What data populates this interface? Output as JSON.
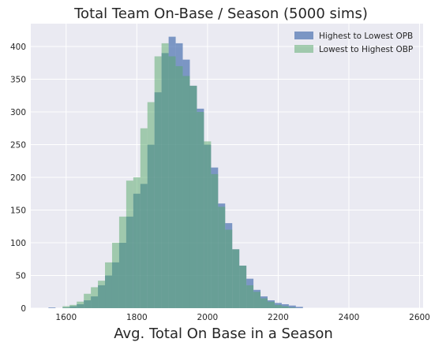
{
  "chart_data": {
    "type": "histogram",
    "title": "Total Team On-Base / Season (5000 sims)",
    "xlabel": "Avg. Total On Base in a Season",
    "ylabel": "",
    "xlim": [
      1500,
      2610
    ],
    "ylim": [
      0,
      435
    ],
    "x_ticks": [
      1600,
      1800,
      2000,
      2200,
      2400,
      2600
    ],
    "y_ticks": [
      0,
      50,
      100,
      150,
      200,
      250,
      300,
      350,
      400
    ],
    "grid": true,
    "legend_position": "top-right",
    "background_color": "#eaeaf2",
    "series": [
      {
        "name": "Highest to Lowest OPB",
        "color": "#4c72b0",
        "alpha": 0.7,
        "bin_start": 1550,
        "bin_width": 20,
        "values": [
          1,
          0,
          1,
          3,
          6,
          12,
          18,
          35,
          50,
          70,
          100,
          140,
          175,
          190,
          250,
          330,
          390,
          415,
          405,
          380,
          340,
          305,
          250,
          215,
          160,
          130,
          90,
          65,
          45,
          28,
          18,
          12,
          8,
          6,
          4,
          2
        ]
      },
      {
        "name": "Lowest to Highest OBP",
        "color": "#55a868",
        "alpha": 0.5,
        "bin_start": 1550,
        "bin_width": 20,
        "values": [
          0,
          0,
          3,
          5,
          10,
          22,
          32,
          42,
          70,
          100,
          140,
          195,
          200,
          275,
          315,
          385,
          405,
          385,
          370,
          355,
          340,
          300,
          255,
          205,
          155,
          120,
          90,
          65,
          35,
          25,
          15,
          10,
          5,
          3,
          1,
          0
        ]
      }
    ]
  }
}
